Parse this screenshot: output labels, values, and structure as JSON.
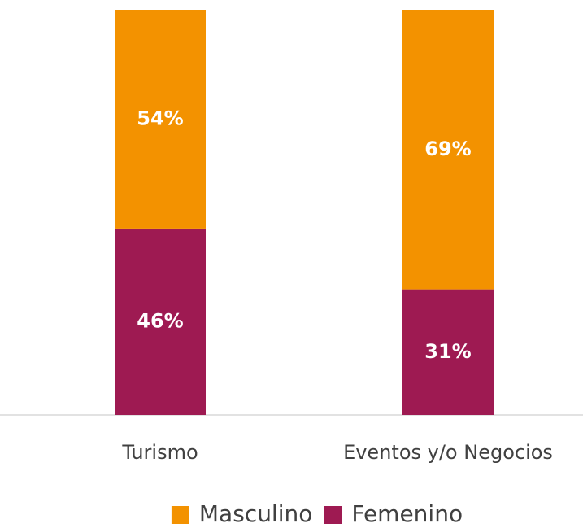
{
  "chart_data": {
    "type": "stacked_bar",
    "categories": [
      "Turismo",
      "Eventos y/o Negocios"
    ],
    "series": [
      {
        "name": "Femenino",
        "color": "#9e1a52",
        "values": [
          46,
          31
        ],
        "value_labels": [
          "46%",
          "31%"
        ]
      },
      {
        "name": "Masculino",
        "color": "#f39200",
        "values": [
          54,
          69
        ],
        "value_labels": [
          "54%",
          "69%"
        ]
      }
    ],
    "ylim": [
      0,
      100
    ]
  }
}
